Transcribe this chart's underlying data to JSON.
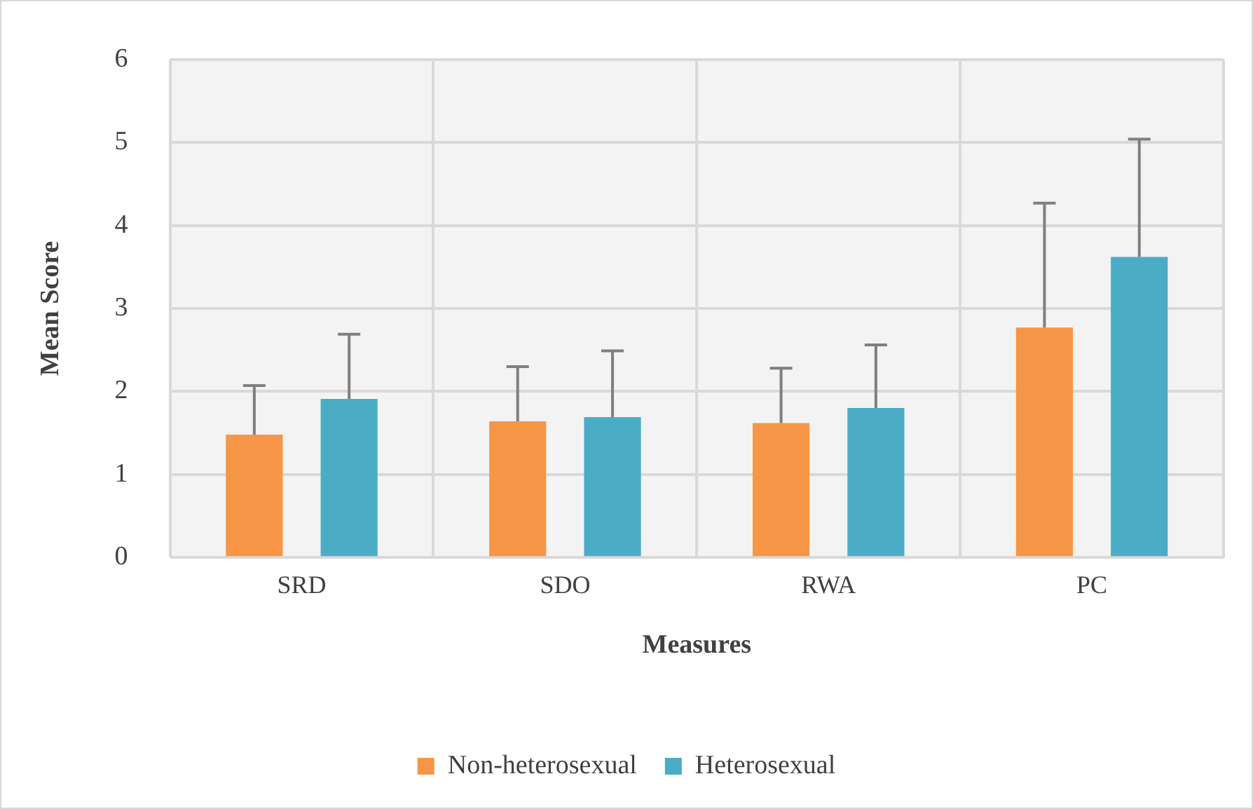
{
  "chart_data": {
    "type": "bar",
    "xlabel": "Measures",
    "ylabel": "Mean Score",
    "categories": [
      "SRD",
      "SDO",
      "RWA",
      "PC"
    ],
    "series": [
      {
        "name": "Non-heterosexual",
        "color": "#f79646",
        "values": [
          1.48,
          1.64,
          1.62,
          2.77
        ],
        "errors": [
          [
            1.48,
            2.07
          ],
          [
            1.64,
            2.3
          ],
          [
            1.62,
            2.28
          ],
          [
            2.77,
            4.27
          ]
        ]
      },
      {
        "name": "Heterosexual",
        "color": "#4bacc6",
        "values": [
          1.91,
          1.69,
          1.8,
          3.62
        ],
        "errors": [
          [
            1.91,
            2.69
          ],
          [
            1.69,
            2.49
          ],
          [
            1.8,
            2.56
          ],
          [
            3.62,
            5.04
          ]
        ]
      }
    ],
    "ylim": [
      0,
      6
    ],
    "yticks": [
      0,
      1,
      2,
      3,
      4,
      5,
      6
    ],
    "grid": true,
    "legend": "bottom"
  }
}
